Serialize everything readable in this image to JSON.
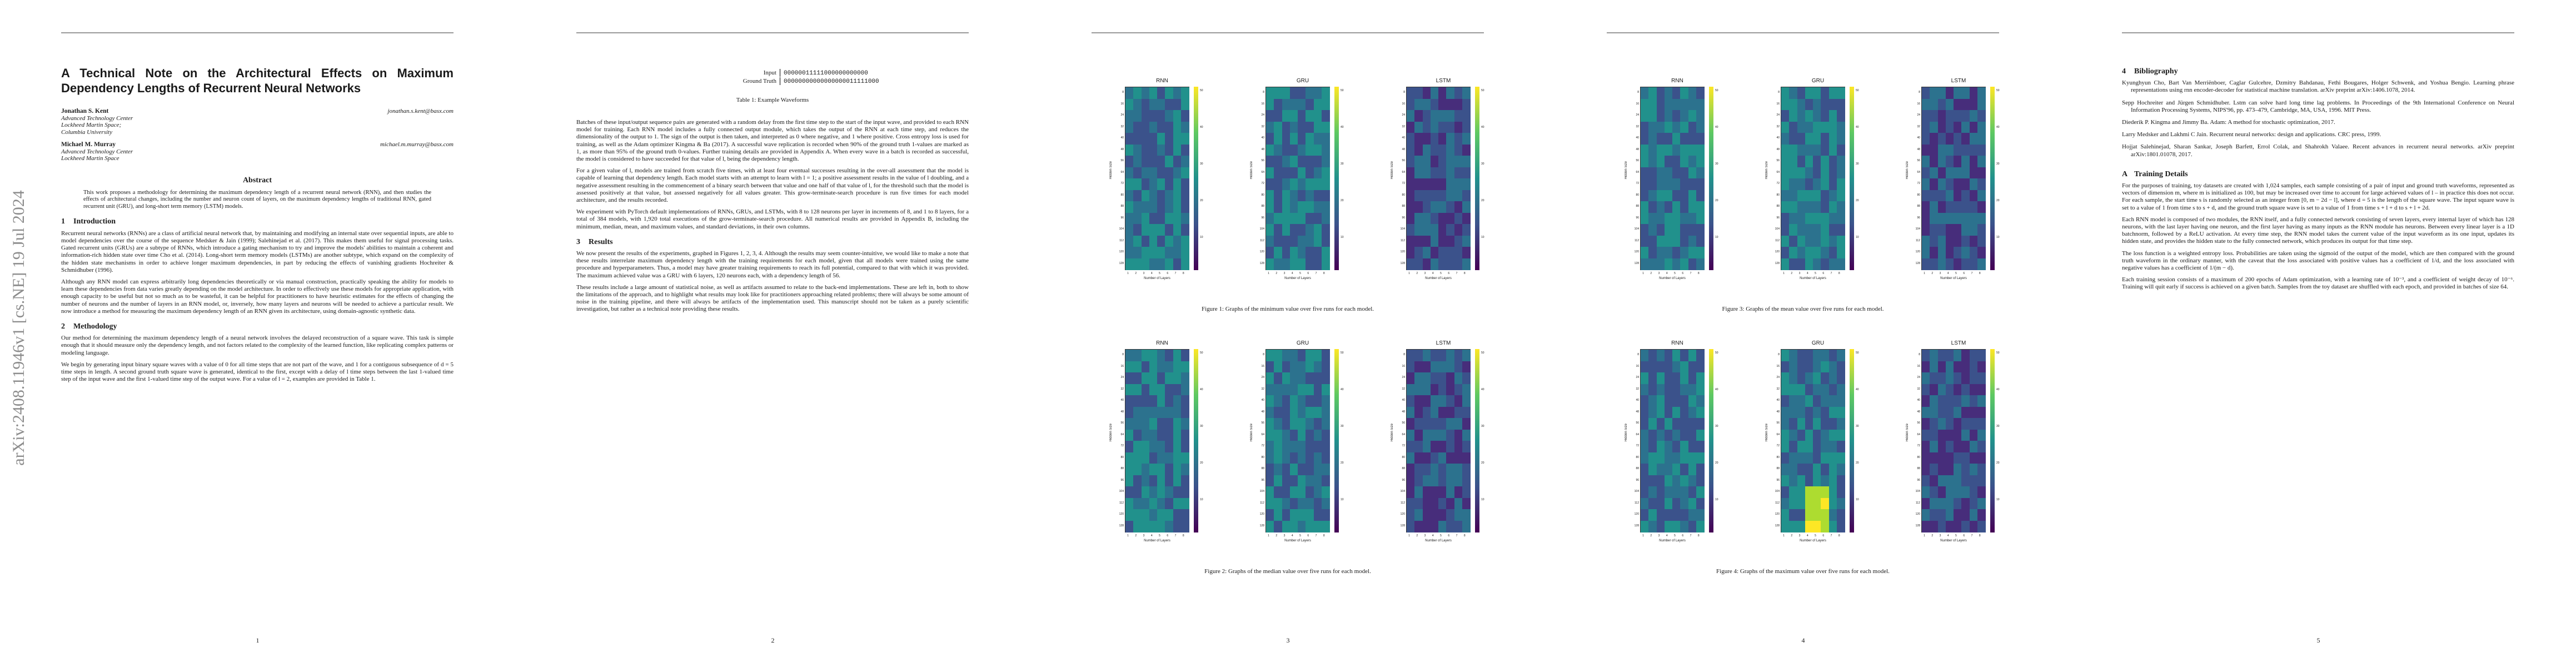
{
  "arxiv_stamp": "arXiv:2408.11946v1  [cs.NE]  19 Jul 2024",
  "pages": [
    "1",
    "2",
    "3",
    "4",
    "5"
  ],
  "title": "A Technical Note on the Architectural Effects on Maximum Dependency Lengths of Recurrent Neural Networks",
  "authors": [
    {
      "name": "Jonathan S. Kent",
      "email": "jonathan.s.kent@basx.com",
      "affil": [
        "Advanced Technology Center",
        "Lockheed Martin Space;",
        "Columbia University"
      ]
    },
    {
      "name": "Michael M. Murray",
      "email": "michael.m.murray@basx.com",
      "affil": [
        "Advanced Technology Center",
        "Lockheed Martin Space"
      ]
    }
  ],
  "abstract_heading": "Abstract",
  "abstract": "This work proposes a methodology for determining the maximum dependency length of a recurrent neural network (RNN), and then studies the effects of architectural changes, including the number and neuron count of layers, on the maximum dependency lengths of traditional RNN, gated recurrent unit (GRU), and long-short term memory (LSTM) models.",
  "p1": {
    "s1": {
      "num": "1",
      "title": "Introduction"
    },
    "s1_paras": [
      "Recurrent neural networks (RNNs) are a class of artificial neural network that, by maintaining and modifying an internal state over sequential inputs, are able to model dependencies over the course of the sequence Medsker & Jain (1999); Salehinejad et al. (2017). This makes them useful for signal processing tasks. Gated recurrent units (GRUs) are a subtype of RNNs, which introduce a gating mechanism to try and improve the models' abilities to maintain a coherent and information-rich hidden state over time Cho et al. (2014). Long-short term memory models (LSTMs) are another subtype, which expand on the complexity of the hidden state mechanisms in order to achieve longer maximum dependencies, in part by reducing the effects of vanishing gradients Hochreiter & Schmidhuber (1996).",
      "Although any RNN model can express arbitrarily long dependencies theoretically or via manual construction, practically speaking the ability for models to learn these dependencies from data varies greatly depending on the model architecture. In order to effectively use these models for appropriate application, with enough capacity to be useful but not so much as to be wasteful, it can be helpful for practitioners to have heuristic estimates for the effects of changing the number of neurons and the number of layers in an RNN model, or, inversely, how many layers and neurons will be needed to achieve a particular result. We now introduce a method for measuring the maximum dependency length of an RNN given its architecture, using domain-agnostic synthetic data."
    ],
    "s2": {
      "num": "2",
      "title": "Methodology"
    },
    "s2_paras": [
      "Our method for determining the maximum dependency length of a neural network involves the delayed reconstruction of a square wave. This task is simple enough that it should measure only the dependency length, and not factors related to the complexity of the learned function, like replicating complex patterns or modeling language.",
      "We begin by generating input binary square waves with a value of 0 for all time steps that are not part of the wave, and 1 for a contiguous subsequence of d = 5 time steps in length. A second ground truth square wave is generated, identical to the first, except with a delay of l time steps between the last 1-valued time step of the input wave and the first 1-valued time step of the output wave. For a value of l = 2, examples are provided in Table 1."
    ]
  },
  "p2": {
    "table": {
      "rows": [
        {
          "label": "Input",
          "wave": "00000011111000000000000"
        },
        {
          "label": "Ground Truth",
          "wave": "00000000000000000011111000"
        }
      ],
      "caption": "Table 1: Example Waveforms"
    },
    "paras": [
      "Batches of these input/output sequence pairs are generated with a random delay from the first time step to the start of the input wave, and provided to each RNN model for training. Each RNN model includes a fully connected output module, which takes the output of the RNN at each time step, and reduces the dimensionality of the output to 1. The sign of the output is then taken, and interpreted as 0 where negative, and 1 where positive. Cross entropy loss is used for training, as well as the Adam optimizer Kingma & Ba (2017). A successful wave replication is recorded when 90% of the ground truth 1-values are marked as 1, as more than 95% of the ground truth 0-values. Further training details are provided in Appendix A. When every wave in a batch is recorded as successful, the model is considered to have succeeded for that value of l, being the dependency length.",
      "For a given value of l, models are trained from scratch five times, with at least four eventual successes resulting in the over-all assessment that the model is capable of learning that dependency length. Each model starts with an attempt to learn with l = 1; a positive assessment results in the value of l doubling, and a negative assessment resulting in the commencement of a binary search between that value and one half of that value of l, for the threshold such that the model is assessed positively at that value, but assessed negatively for all values greater. This grow-terminate-search procedure is run five times for each model architecture, and the results recorded.",
      "We experiment with PyTorch default implementations of RNNs, GRUs, and LSTMs, with 8 to 128 neurons per layer in increments of 8, and 1 to 8 layers, for a total of 384 models, with 1,920 total executions of the grow-terminate-search procedure. All numerical results are provided in Appendix B, including the minimum, median, mean, and maximum values, and standard deviations, in their own columns."
    ],
    "s3": {
      "num": "3",
      "title": "Results"
    },
    "s3_paras": [
      "We now present the results of the experiments, graphed in Figures 1, 2, 3, 4. Although the results may seem counter-intuitive, we would like to make a note that these results interrelate maximum dependency length with the training requirements for each model, given that all models were trained using the same procedure and hyperparameters. Thus, a model may have greater training requirements to reach its full potential, compared to that with which it was provided. The maximum achieved value was a GRU with 6 layers, 120 neurons each, with a dependency length of 56.",
      "These results include a large amount of statistical noise, as well as artifacts assumed to relate to the back-end implementations. These are left in, both to show the limitations of the approach, and to highlight what results may look like for practitioners approaching related problems; there will always be some amount of noise in the training pipeline, and there will always be artifacts of the implementation used. This manuscript should not be taken as a purely scientific investigation, but rather as a technical note providing these results."
    ]
  },
  "figures": {
    "fig1": "Figure 1: Graphs of the minimum value over five runs for each model.",
    "fig2": "Figure 2: Graphs of the median value over five runs for each model.",
    "fig3": "Figure 3: Graphs of the mean value over five runs for each model.",
    "fig4": "Figure 4: Graphs of the maximum value over five runs for each model."
  },
  "plot_labels": {
    "titles": [
      "RNN",
      "GRU",
      "LSTM"
    ],
    "xlabel": "Number of Layers",
    "ylabel": "Hidden Size",
    "xticks": [
      "1",
      "2",
      "3",
      "4",
      "5",
      "6",
      "7",
      "8"
    ],
    "yticks": [
      "8",
      "16",
      "24",
      "32",
      "40",
      "48",
      "56",
      "64",
      "72",
      "80",
      "88",
      "96",
      "104",
      "112",
      "120",
      "128"
    ],
    "cbar_ticks": [
      "50",
      "40",
      "30",
      "20",
      "10"
    ]
  },
  "p5": {
    "s4": {
      "num": "4",
      "title": "Bibliography"
    },
    "bib": [
      "Kyunghyun Cho, Bart Van Merriënboer, Caglar Gulcehre, Dzmitry Bahdanau, Fethi Bougares, Holger Schwenk, and Yoshua Bengio. Learning phrase representations using rnn encoder-decoder for statistical machine translation. arXiv preprint arXiv:1406.1078, 2014.",
      "Sepp Hochreiter and Jürgen Schmidhuber. Lstm can solve hard long time lag problems. In Proceedings of the 9th International Conference on Neural Information Processing Systems, NIPS'96, pp. 473–479, Cambridge, MA, USA, 1996. MIT Press.",
      "Diederik P. Kingma and Jimmy Ba. Adam: A method for stochastic optimization, 2017.",
      "Larry Medsker and Lakhmi C Jain. Recurrent neural networks: design and applications. CRC press, 1999.",
      "Hojjat Salehinejad, Sharan Sankar, Joseph Barfett, Errol Colak, and Shahrokh Valaee. Recent advances in recurrent neural networks. arXiv preprint arXiv:1801.01078, 2017."
    ],
    "sA": {
      "num": "A",
      "title": "Training Details"
    },
    "sA_paras": [
      "For the purposes of training, toy datasets are created with 1,024 samples, each sample consisting of a pair of input and ground truth waveforms, represented as vectors of dimension m, where m is initialized as 100, but may be increased over time to account for large achieved values of l – in practice this does not occur. For each sample, the start time s is randomly selected as an integer from [0, m − 2d − l], where d = 5 is the length of the square wave. The input square wave is set to a value of 1 from time s to s + d, and the ground truth square wave is set to a value of 1 from time s + l + d to s + l + 2d.",
      "Each RNN model is composed of two modules, the RNN itself, and a fully connected network consisting of seven layers, every internal layer of which has 128 neurons, with the last layer having one neuron, and the first layer having as many inputs as the RNN module has neurons. Between every linear layer is a 1D batchnorm, followed by a ReLU activation. At every time step, the RNN model takes the current value of the input waveform as its one input, updates its hidden state, and provides the hidden state to the fully connected network, which produces its output for that time step.",
      "The loss function is a weighted entropy loss. Probabilities are taken using the sigmoid of the output of the model, which are then compared with the ground truth waveform in the ordinary manner, with the caveat that the loss associated with positive values has a coefficient of 1/d, and the loss associated with negative values has a coefficient of 1/(m − d).",
      "Each training session consists of a maximum of 200 epochs of Adam optimization, with a learning rate of 10⁻³, and a coefficient of weight decay of 10⁻⁶. Training will quit early if success is achieved on a given batch. Samples from the toy dataset are shuffled with each epoch, and provided in batches of size 64."
    ]
  }
}
